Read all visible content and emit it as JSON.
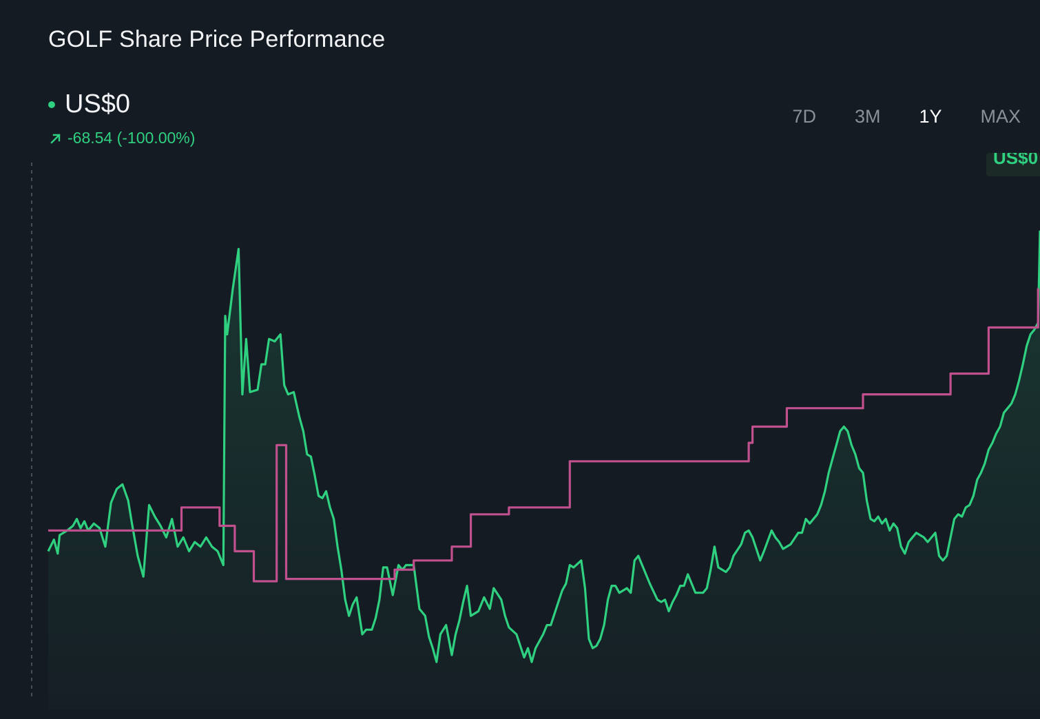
{
  "header": {
    "title": "GOLF Share Price Performance"
  },
  "price": {
    "current": "US$0",
    "change": "-68.54 (-100.00%)"
  },
  "ranges": [
    {
      "label": "7D",
      "active": false
    },
    {
      "label": "3M",
      "active": false
    },
    {
      "label": "1Y",
      "active": true
    },
    {
      "label": "MAX",
      "active": false
    }
  ],
  "end_label": "US$0",
  "colors": {
    "background": "#151b23",
    "price_line": "#2fd080",
    "benchmark_line": "#c0508e",
    "inactive_text": "#8a9097"
  },
  "icons": {
    "change": "arrow-up-right-icon",
    "live": "dot-icon"
  },
  "chart_data": {
    "type": "line",
    "title": "GOLF Share Price Performance",
    "grid": false,
    "legend": "none",
    "y_axis_labels": false,
    "series": [
      {
        "role": "price",
        "color": "#2fd080",
        "fill": true,
        "values": [
          [
            0,
            56
          ],
          [
            1.5,
            61
          ],
          [
            2.5,
            55
          ],
          [
            3,
            63
          ],
          [
            5,
            65
          ],
          [
            6.5,
            67
          ],
          [
            7.5,
            70
          ],
          [
            8.5,
            66
          ],
          [
            9.5,
            69
          ],
          [
            10.5,
            65
          ],
          [
            12,
            68
          ],
          [
            13.5,
            66
          ],
          [
            15,
            58
          ],
          [
            16.5,
            77
          ],
          [
            18,
            83
          ],
          [
            19.5,
            85
          ],
          [
            21,
            78
          ],
          [
            22,
            68
          ],
          [
            23.5,
            54
          ],
          [
            25,
            45
          ],
          [
            26.5,
            76
          ],
          [
            28,
            71
          ],
          [
            29.5,
            67
          ],
          [
            31,
            62
          ],
          [
            32.5,
            70
          ],
          [
            34,
            58
          ],
          [
            35.5,
            62
          ],
          [
            37,
            56
          ],
          [
            38.5,
            60
          ],
          [
            40,
            58
          ],
          [
            41.5,
            62
          ],
          [
            43,
            58
          ],
          [
            44.5,
            56
          ],
          [
            46,
            50
          ],
          [
            46.5,
            158
          ],
          [
            47,
            150
          ],
          [
            48.5,
            170
          ],
          [
            50,
            187
          ],
          [
            51,
            124
          ],
          [
            52,
            148
          ],
          [
            53,
            125
          ],
          [
            55,
            126
          ],
          [
            56,
            137
          ],
          [
            57,
            137
          ],
          [
            58,
            148
          ],
          [
            59.5,
            147
          ],
          [
            61,
            150
          ],
          [
            62,
            128
          ],
          [
            63,
            124
          ],
          [
            64.5,
            125
          ],
          [
            66,
            114
          ],
          [
            67,
            108
          ],
          [
            68,
            98
          ],
          [
            69,
            97
          ],
          [
            70,
            89
          ],
          [
            71,
            80
          ],
          [
            72,
            79
          ],
          [
            73,
            82
          ],
          [
            74,
            75
          ],
          [
            75,
            70
          ],
          [
            76,
            58
          ],
          [
            77,
            48
          ],
          [
            78,
            35
          ],
          [
            79,
            28
          ],
          [
            80,
            33
          ],
          [
            81,
            36
          ],
          [
            82.5,
            20
          ],
          [
            83.5,
            22
          ],
          [
            85,
            22
          ],
          [
            86,
            27
          ],
          [
            87,
            35
          ],
          [
            88,
            49
          ],
          [
            89,
            49
          ],
          [
            90.5,
            37
          ],
          [
            92,
            50
          ],
          [
            93,
            48
          ],
          [
            94,
            50
          ],
          [
            96,
            50
          ],
          [
            97.5,
            31
          ],
          [
            99,
            28
          ],
          [
            100,
            19
          ],
          [
            101,
            14
          ],
          [
            102,
            8
          ],
          [
            103,
            20
          ],
          [
            104.5,
            24
          ],
          [
            106,
            11
          ],
          [
            107,
            20
          ],
          [
            108,
            26
          ],
          [
            109,
            34
          ],
          [
            110,
            41
          ],
          [
            111,
            28
          ],
          [
            113,
            30
          ],
          [
            114.5,
            36
          ],
          [
            116,
            31
          ],
          [
            117,
            40
          ],
          [
            119,
            35
          ],
          [
            120,
            28
          ],
          [
            121,
            23
          ],
          [
            123,
            20
          ],
          [
            125,
            10
          ],
          [
            126,
            14
          ],
          [
            127,
            8
          ],
          [
            128,
            14
          ],
          [
            130,
            20
          ],
          [
            131,
            24
          ],
          [
            132,
            24
          ],
          [
            134,
            34
          ],
          [
            135,
            39
          ],
          [
            136,
            42
          ],
          [
            137,
            50
          ],
          [
            138,
            49
          ],
          [
            140,
            52
          ],
          [
            141,
            40
          ],
          [
            142,
            18
          ],
          [
            143,
            14
          ],
          [
            144,
            15
          ],
          [
            145,
            18
          ],
          [
            146,
            24
          ],
          [
            147,
            35
          ],
          [
            148,
            41
          ],
          [
            149,
            41
          ],
          [
            150,
            38
          ],
          [
            152,
            40
          ],
          [
            153,
            38
          ],
          [
            154,
            52
          ],
          [
            155,
            54
          ],
          [
            157,
            46
          ],
          [
            158,
            42
          ],
          [
            160,
            35
          ],
          [
            161,
            34
          ],
          [
            162,
            35
          ],
          [
            163,
            30
          ],
          [
            164,
            34
          ],
          [
            165,
            37
          ],
          [
            166,
            41
          ],
          [
            167,
            41
          ],
          [
            168,
            46
          ],
          [
            169,
            42
          ],
          [
            170,
            38
          ],
          [
            172,
            38
          ],
          [
            173,
            40
          ],
          [
            174,
            48
          ],
          [
            175,
            58
          ],
          [
            176,
            49
          ],
          [
            178,
            47
          ],
          [
            179,
            49
          ],
          [
            180,
            54
          ],
          [
            182,
            59
          ],
          [
            183,
            64
          ],
          [
            184,
            65
          ],
          [
            185,
            62
          ],
          [
            186,
            57
          ],
          [
            187,
            52
          ],
          [
            188,
            56
          ],
          [
            190,
            65
          ],
          [
            191,
            62
          ],
          [
            192,
            60
          ],
          [
            193,
            57
          ],
          [
            195,
            59
          ],
          [
            197,
            64
          ],
          [
            198,
            64
          ],
          [
            199,
            70
          ],
          [
            200,
            68
          ],
          [
            202,
            72
          ],
          [
            203,
            76
          ],
          [
            204,
            82
          ],
          [
            205,
            90
          ],
          [
            206,
            96
          ],
          [
            207,
            102
          ],
          [
            208,
            108
          ],
          [
            209,
            110
          ],
          [
            210,
            108
          ],
          [
            211,
            102
          ],
          [
            212,
            98
          ],
          [
            213,
            92
          ],
          [
            214,
            90
          ],
          [
            215,
            78
          ],
          [
            216,
            70
          ],
          [
            217,
            69
          ],
          [
            218,
            71
          ],
          [
            219,
            68
          ],
          [
            220,
            70
          ],
          [
            221,
            65
          ],
          [
            222,
            68
          ],
          [
            223,
            66
          ],
          [
            224,
            58
          ],
          [
            225,
            55
          ],
          [
            226,
            60
          ],
          [
            227,
            62
          ],
          [
            228,
            64
          ],
          [
            230,
            62
          ],
          [
            231,
            60
          ],
          [
            233,
            64
          ],
          [
            234,
            54
          ],
          [
            235,
            52
          ],
          [
            236,
            54
          ],
          [
            237,
            62
          ],
          [
            238,
            70
          ],
          [
            239,
            72
          ],
          [
            240,
            71
          ],
          [
            241,
            75
          ],
          [
            242,
            76
          ],
          [
            243,
            80
          ],
          [
            244,
            87
          ],
          [
            245,
            90
          ],
          [
            246,
            94
          ],
          [
            247,
            100
          ],
          [
            248,
            103
          ],
          [
            249,
            107
          ],
          [
            250,
            110
          ],
          [
            251,
            116
          ],
          [
            252,
            118
          ],
          [
            253,
            120
          ],
          [
            254,
            124
          ],
          [
            255,
            130
          ],
          [
            256,
            137
          ],
          [
            257,
            145
          ],
          [
            258,
            150
          ],
          [
            259,
            152
          ],
          [
            260,
            155
          ],
          [
            260.5,
            195
          ]
        ]
      },
      {
        "role": "benchmark",
        "color": "#c0508e",
        "step": true,
        "values": [
          [
            0,
            65
          ],
          [
            35,
            65
          ],
          [
            35,
            75
          ],
          [
            45,
            75
          ],
          [
            45,
            67
          ],
          [
            49,
            67
          ],
          [
            49,
            56
          ],
          [
            54,
            56
          ],
          [
            54,
            43
          ],
          [
            60,
            43
          ],
          [
            60,
            102
          ],
          [
            62.5,
            102
          ],
          [
            62.5,
            44
          ],
          [
            91,
            44
          ],
          [
            91,
            48
          ],
          [
            96,
            48
          ],
          [
            96,
            52
          ],
          [
            106,
            52
          ],
          [
            106,
            58
          ],
          [
            111,
            58
          ],
          [
            111,
            72
          ],
          [
            121,
            72
          ],
          [
            121,
            75
          ],
          [
            137,
            75
          ],
          [
            137,
            95
          ],
          [
            184,
            95
          ],
          [
            184,
            103
          ],
          [
            185,
            103
          ],
          [
            185,
            110
          ],
          [
            194,
            110
          ],
          [
            194,
            118
          ],
          [
            214,
            118
          ],
          [
            214,
            124
          ],
          [
            237,
            124
          ],
          [
            237,
            133
          ],
          [
            247,
            133
          ],
          [
            247,
            153
          ],
          [
            260,
            153
          ],
          [
            260,
            170
          ]
        ]
      }
    ],
    "x_domain": [
      0,
      260.5
    ],
    "y_domain": [
      0,
      200
    ]
  }
}
